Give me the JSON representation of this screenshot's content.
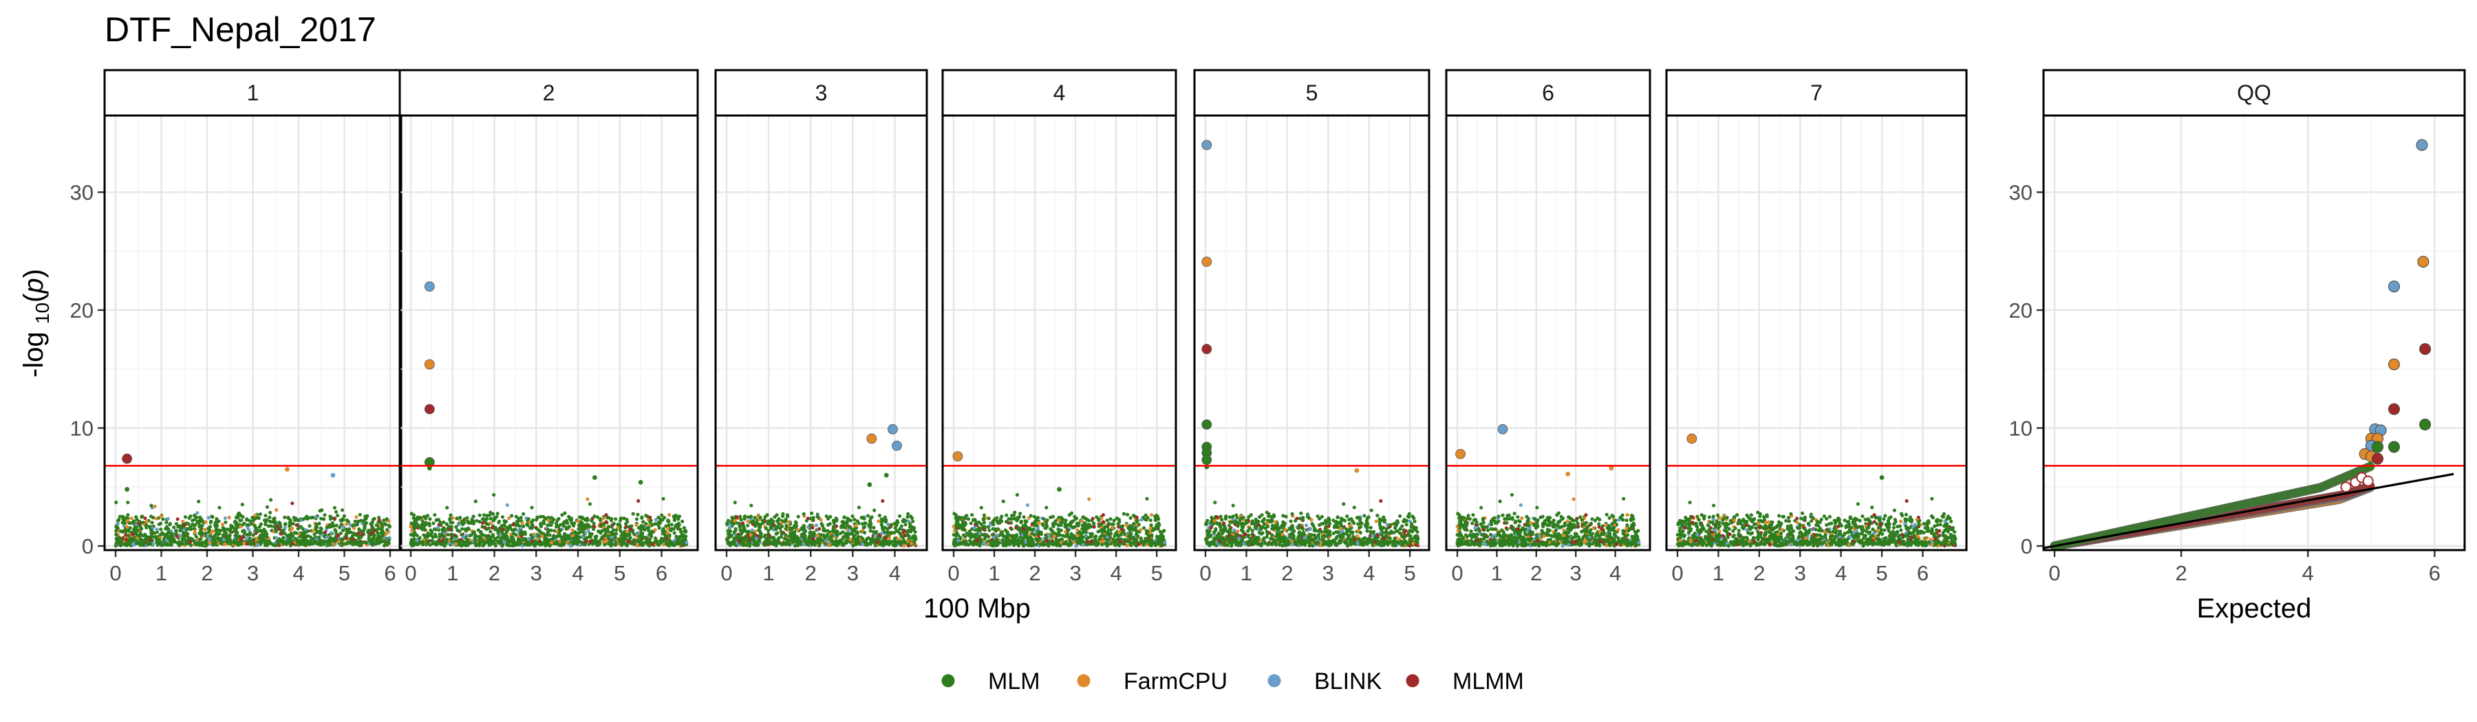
{
  "title": "DTF_Nepal_2017",
  "chart_data": {
    "type": "scatter",
    "title": "DTF_Nepal_2017",
    "ylabel_parts": {
      "prefix": "-log ",
      "sub": "10",
      "open": "(",
      "italic": "p",
      "close": ")"
    },
    "ylim": [
      0,
      35
    ],
    "yticks": [
      0,
      10,
      20,
      30
    ],
    "threshold": 6.8,
    "manhattan_xlabel": "100 Mbp",
    "qq_xlabel": "Expected",
    "legend_position": "bottom",
    "series": [
      {
        "name": "MLM",
        "color": "#2e7d1e"
      },
      {
        "name": "FarmCPU",
        "color": "#e08a2c"
      },
      {
        "name": "BLINK",
        "color": "#6a9ec8"
      },
      {
        "name": "MLMM",
        "color": "#a02a2a"
      }
    ],
    "panels": [
      {
        "label": "1",
        "xlim": [
          0,
          6
        ],
        "xticks": [
          0,
          1,
          2,
          3,
          4,
          5,
          6
        ],
        "peaks": [
          {
            "x": 0.25,
            "y": 7.4,
            "s": 3
          },
          {
            "x": 0.25,
            "y": 4.8,
            "s": 0
          },
          {
            "x": 3.75,
            "y": 6.5,
            "s": 1
          },
          {
            "x": 4.75,
            "y": 6.0,
            "s": 2
          }
        ]
      },
      {
        "label": "2",
        "xlim": [
          0,
          6.6
        ],
        "xticks": [
          0,
          1,
          2,
          3,
          4,
          5,
          6
        ],
        "peaks": [
          {
            "x": 0.45,
            "y": 22.0,
            "s": 2
          },
          {
            "x": 0.45,
            "y": 15.4,
            "s": 1
          },
          {
            "x": 0.45,
            "y": 11.6,
            "s": 3
          },
          {
            "x": 0.45,
            "y": 7.1,
            "s": 0
          },
          {
            "x": 0.45,
            "y": 6.6,
            "s": 0
          },
          {
            "x": 4.4,
            "y": 5.8,
            "s": 0
          },
          {
            "x": 5.5,
            "y": 5.4,
            "s": 0
          }
        ]
      },
      {
        "label": "3",
        "xlim": [
          0,
          4.5
        ],
        "xticks": [
          0,
          1,
          2,
          3,
          4
        ],
        "peaks": [
          {
            "x": 3.45,
            "y": 9.1,
            "s": 1
          },
          {
            "x": 3.95,
            "y": 9.9,
            "s": 2
          },
          {
            "x": 4.05,
            "y": 8.5,
            "s": 2
          },
          {
            "x": 3.8,
            "y": 6.0,
            "s": 0
          },
          {
            "x": 3.4,
            "y": 5.2,
            "s": 0
          }
        ]
      },
      {
        "label": "4",
        "xlim": [
          0,
          5.2
        ],
        "xticks": [
          0,
          1,
          2,
          3,
          4,
          5
        ],
        "peaks": [
          {
            "x": 0.1,
            "y": 7.6,
            "s": 1
          },
          {
            "x": 2.6,
            "y": 4.8,
            "s": 0
          }
        ]
      },
      {
        "label": "5",
        "xlim": [
          0,
          5.2
        ],
        "xticks": [
          0,
          1,
          2,
          3,
          4,
          5
        ],
        "peaks": [
          {
            "x": 0.03,
            "y": 34.0,
            "s": 2
          },
          {
            "x": 0.03,
            "y": 24.1,
            "s": 1
          },
          {
            "x": 0.03,
            "y": 16.7,
            "s": 3
          },
          {
            "x": 0.03,
            "y": 10.3,
            "s": 0
          },
          {
            "x": 0.03,
            "y": 8.4,
            "s": 0
          },
          {
            "x": 0.03,
            "y": 7.9,
            "s": 0
          },
          {
            "x": 0.03,
            "y": 7.3,
            "s": 0
          },
          {
            "x": 0.03,
            "y": 6.7,
            "s": 0
          },
          {
            "x": 3.7,
            "y": 6.4,
            "s": 1
          }
        ]
      },
      {
        "label": "6",
        "xlim": [
          0,
          4.6
        ],
        "xticks": [
          0,
          1,
          2,
          3,
          4
        ],
        "peaks": [
          {
            "x": 0.08,
            "y": 7.8,
            "s": 1
          },
          {
            "x": 1.15,
            "y": 9.9,
            "s": 2
          },
          {
            "x": 2.8,
            "y": 6.1,
            "s": 1
          },
          {
            "x": 3.9,
            "y": 6.6,
            "s": 1
          }
        ]
      },
      {
        "label": "7",
        "xlim": [
          0,
          6.8
        ],
        "xticks": [
          0,
          1,
          2,
          3,
          4,
          5,
          6
        ],
        "peaks": [
          {
            "x": 0.35,
            "y": 9.1,
            "s": 1
          },
          {
            "x": 5.0,
            "y": 5.8,
            "s": 0
          }
        ]
      }
    ],
    "qq": {
      "label": "QQ",
      "xlim": [
        0,
        6.3
      ],
      "xticks": [
        0,
        2,
        4,
        6
      ],
      "reference_line": [
        [
          -0.2,
          -0.2
        ],
        [
          6.3,
          6.1
        ]
      ],
      "top_points": [
        {
          "x": 5.8,
          "y": 34.0,
          "s": 2
        },
        {
          "x": 5.82,
          "y": 24.1,
          "s": 1
        },
        {
          "x": 5.36,
          "y": 22.0,
          "s": 2
        },
        {
          "x": 5.85,
          "y": 16.7,
          "s": 3
        },
        {
          "x": 5.36,
          "y": 15.4,
          "s": 1
        },
        {
          "x": 5.36,
          "y": 11.6,
          "s": 3
        },
        {
          "x": 5.85,
          "y": 10.3,
          "s": 0
        },
        {
          "x": 5.06,
          "y": 9.9,
          "s": 2
        },
        {
          "x": 5.15,
          "y": 9.8,
          "s": 2
        },
        {
          "x": 5.0,
          "y": 9.1,
          "s": 1
        },
        {
          "x": 5.1,
          "y": 9.1,
          "s": 1
        },
        {
          "x": 5.36,
          "y": 8.4,
          "s": 0
        },
        {
          "x": 5.0,
          "y": 8.5,
          "s": 2
        },
        {
          "x": 5.1,
          "y": 8.4,
          "s": 0
        },
        {
          "x": 4.9,
          "y": 7.8,
          "s": 1
        },
        {
          "x": 5.0,
          "y": 7.6,
          "s": 1
        },
        {
          "x": 5.1,
          "y": 7.4,
          "s": 3
        }
      ]
    }
  }
}
